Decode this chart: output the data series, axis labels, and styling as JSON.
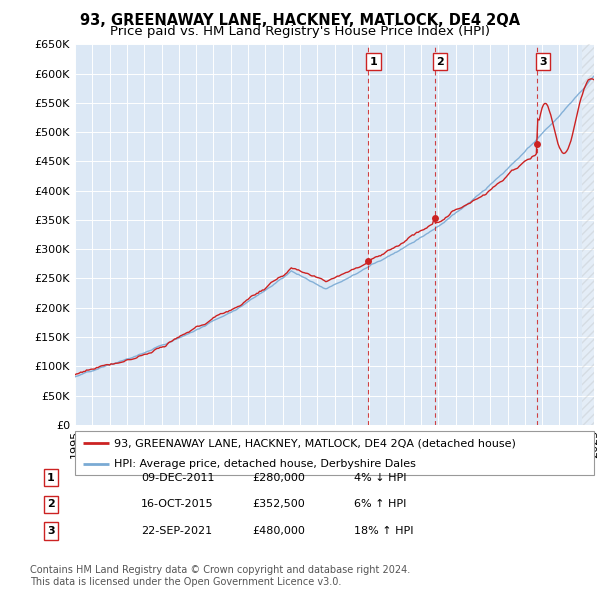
{
  "title": "93, GREENAWAY LANE, HACKNEY, MATLOCK, DE4 2QA",
  "subtitle": "Price paid vs. HM Land Registry's House Price Index (HPI)",
  "ylim": [
    0,
    650000
  ],
  "yticks": [
    0,
    50000,
    100000,
    150000,
    200000,
    250000,
    300000,
    350000,
    400000,
    450000,
    500000,
    550000,
    600000,
    650000
  ],
  "xlim_start": 1995.0,
  "xlim_end": 2025.0,
  "hpi_color": "#7aaad4",
  "price_color": "#cc2222",
  "background_color": "#dce8f5",
  "grid_color": "#ffffff",
  "sale_dates": [
    2011.94,
    2015.79,
    2021.73
  ],
  "sale_prices": [
    280000,
    352500,
    480000
  ],
  "sale_labels": [
    "1",
    "2",
    "3"
  ],
  "sale_info": [
    {
      "label": "1",
      "date": "09-DEC-2011",
      "price": "£280,000",
      "pct": "4%",
      "dir": "↓",
      "vs": "HPI"
    },
    {
      "label": "2",
      "date": "16-OCT-2015",
      "price": "£352,500",
      "pct": "6%",
      "dir": "↑",
      "vs": "HPI"
    },
    {
      "label": "3",
      "date": "22-SEP-2021",
      "price": "£480,000",
      "pct": "18%",
      "dir": "↑",
      "vs": "HPI"
    }
  ],
  "legend_entries": [
    {
      "label": "93, GREENAWAY LANE, HACKNEY, MATLOCK, DE4 2QA (detached house)",
      "color": "#cc2222"
    },
    {
      "label": "HPI: Average price, detached house, Derbyshire Dales",
      "color": "#7aaad4"
    }
  ],
  "footnote": "Contains HM Land Registry data © Crown copyright and database right 2024.\nThis data is licensed under the Open Government Licence v3.0.",
  "title_fontsize": 10.5,
  "subtitle_fontsize": 9.5,
  "tick_fontsize": 8,
  "legend_fontsize": 8,
  "table_fontsize": 8,
  "footnote_fontsize": 7
}
